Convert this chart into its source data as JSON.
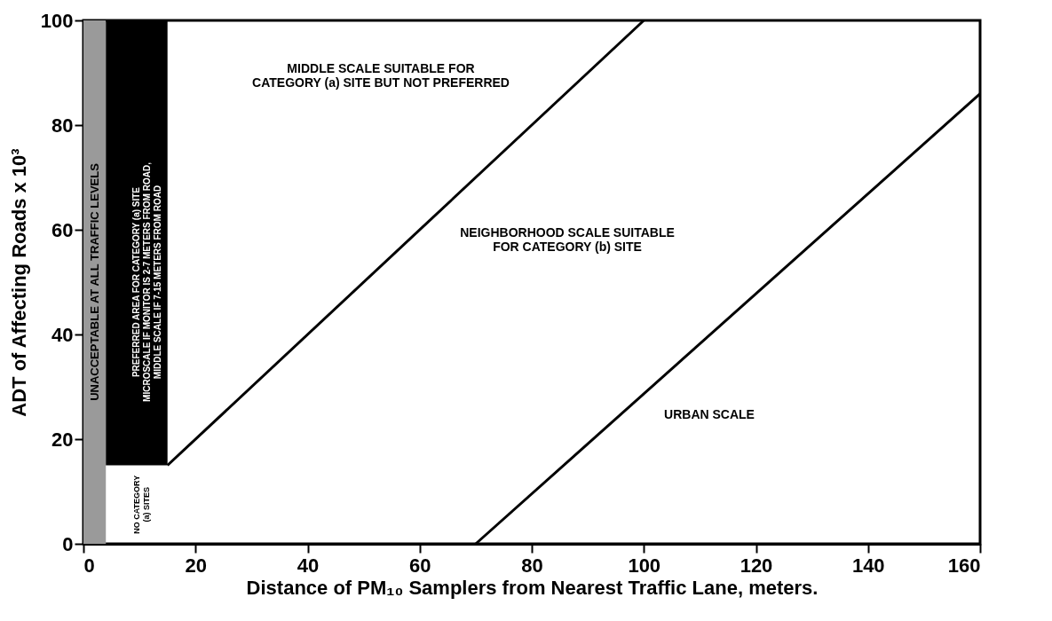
{
  "chart_data": {
    "type": "line",
    "xlabel": "Distance of PM₁₀ Samplers from Nearest Traffic Lane, meters.",
    "ylabel": "ADT of Affecting Roads x 10³",
    "series": [
      {
        "color": "#000000",
        "x": [
          15,
          100
        ],
        "values": [
          15,
          100
        ]
      },
      {
        "color": "#000000",
        "x": [
          70,
          160
        ],
        "values": [
          0,
          86
        ]
      }
    ],
    "xlim": [
      0,
      160
    ],
    "xticks": [
      0,
      20,
      40,
      60,
      80,
      100,
      120,
      140,
      160
    ],
    "ylim": [
      0,
      100
    ],
    "yticks": [
      0,
      20,
      40,
      60,
      80,
      100
    ],
    "grid": false,
    "marker": "none",
    "line_style": "solid",
    "bands": [
      {
        "axis": "x",
        "from": 0,
        "to": 4,
        "label": "UNACCEPTABLE AT ALL TRAFFIC LEVELS",
        "color": "#9a9a9a"
      },
      {
        "axis": "x",
        "from": 4,
        "to": 15,
        "label": "PREFERRED AREA FOR CATEGORY (a) SITE\nMICROSCALE IF MONITOR IS 2-7 METERS FROM ROAD,\nMIDDLE SCALE IF 7-15 METERS FROM ROAD",
        "color": "#000000"
      }
    ],
    "annotations": [
      "NO CATEGORY (a) SITES",
      "MIDDLE SCALE SUITABLE FOR\nCATEGORY (a) SITE BUT NOT PREFERRED",
      "NEIGHBORHOOD SCALE SUITABLE\nFOR CATEGORY (b) SITE",
      "URBAN SCALE"
    ]
  }
}
